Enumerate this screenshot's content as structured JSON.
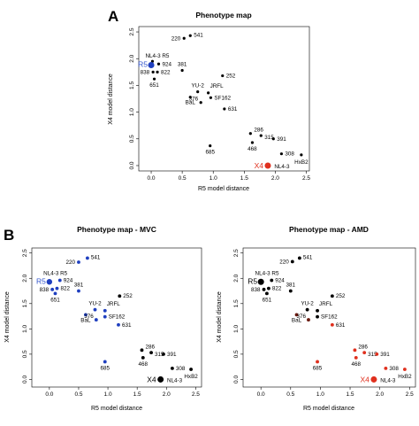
{
  "colors": {
    "blue": "#1f3fbf",
    "red": "#e0301e",
    "black": "#000000",
    "darkred": "#6a1a10",
    "label_blue": "#3355cc"
  },
  "panel_letters": [
    "A",
    "B"
  ],
  "chart_data": [
    {
      "id": "A",
      "type": "scatter",
      "title": "Phenotype map",
      "xlabel": "R5 model distance",
      "ylabel": "X4 model distance",
      "xlim": [
        -0.2,
        2.55
      ],
      "ylim": [
        -0.1,
        2.6
      ],
      "xticks": [
        "0.0",
        "0.5",
        "1.0",
        "1.5",
        "2.0",
        "2.5"
      ],
      "yticks": [
        "0.0",
        "0.5",
        "1.0",
        "1.5",
        "2.0",
        "2.5"
      ],
      "points": [
        {
          "label": "541",
          "x": 0.63,
          "y": 2.43,
          "color": "black",
          "size": 1
        },
        {
          "label": "220",
          "x": 0.53,
          "y": 2.38,
          "color": "black",
          "size": 1
        },
        {
          "label": "NL4-3 R5",
          "x": 0.02,
          "y": 1.95,
          "color": "black",
          "size": 1
        },
        {
          "label": "R5",
          "x": 0.0,
          "y": 1.88,
          "color": "blue",
          "size": 2.2
        },
        {
          "label": "924",
          "x": 0.12,
          "y": 1.9,
          "color": "black",
          "size": 1
        },
        {
          "label": "838",
          "x": 0.03,
          "y": 1.75,
          "color": "black",
          "size": 1
        },
        {
          "label": "822",
          "x": 0.1,
          "y": 1.75,
          "color": "black",
          "size": 1
        },
        {
          "label": "651",
          "x": 0.05,
          "y": 1.62,
          "color": "black",
          "size": 1
        },
        {
          "label": "381",
          "x": 0.5,
          "y": 1.78,
          "color": "black",
          "size": 1
        },
        {
          "label": "252",
          "x": 1.15,
          "y": 1.68,
          "color": "black",
          "size": 1
        },
        {
          "label": "YU-2",
          "x": 0.75,
          "y": 1.38,
          "color": "black",
          "size": 1
        },
        {
          "label": "JRFL",
          "x": 0.92,
          "y": 1.36,
          "color": "black",
          "size": 1
        },
        {
          "label": "BaL",
          "x": 0.63,
          "y": 1.28,
          "color": "black",
          "size": 1
        },
        {
          "label": "376",
          "x": 0.8,
          "y": 1.18,
          "color": "black",
          "size": 1
        },
        {
          "label": "SF162",
          "x": 0.96,
          "y": 1.27,
          "color": "black",
          "size": 1
        },
        {
          "label": "631",
          "x": 1.18,
          "y": 1.06,
          "color": "black",
          "size": 1
        },
        {
          "label": "685",
          "x": 0.95,
          "y": 0.37,
          "color": "black",
          "size": 1
        },
        {
          "label": "286",
          "x": 1.6,
          "y": 0.6,
          "color": "black",
          "size": 1
        },
        {
          "label": "315",
          "x": 1.77,
          "y": 0.56,
          "color": "black",
          "size": 1
        },
        {
          "label": "391",
          "x": 1.97,
          "y": 0.5,
          "color": "black",
          "size": 1
        },
        {
          "label": "468",
          "x": 1.63,
          "y": 0.43,
          "color": "black",
          "size": 1
        },
        {
          "label": "308",
          "x": 2.1,
          "y": 0.22,
          "color": "black",
          "size": 1
        },
        {
          "label": "HxB2",
          "x": 2.42,
          "y": 0.2,
          "color": "black",
          "size": 1
        },
        {
          "label": "X4",
          "x": 1.88,
          "y": 0.0,
          "color": "red",
          "size": 2.2
        },
        {
          "label": "NL4-3",
          "x": 1.9,
          "y": 0.0,
          "color": "black",
          "size": 0
        }
      ]
    },
    {
      "id": "B1",
      "type": "scatter",
      "title": "Phenotype map - MVC",
      "xlabel": "R5 model distance",
      "ylabel": "X4 model distance",
      "xlim": [
        -0.3,
        2.6
      ],
      "ylim": [
        -0.15,
        2.6
      ],
      "xticks": [
        "0.0",
        "0.5",
        "1.0",
        "1.5",
        "2.0",
        "2.5"
      ],
      "yticks": [
        "0.0",
        "0.5",
        "1.0",
        "1.5",
        "2.0",
        "2.5"
      ],
      "points": [
        {
          "label": "541",
          "x": 0.65,
          "y": 2.4,
          "color": "blue",
          "size": 1.2
        },
        {
          "label": "220",
          "x": 0.5,
          "y": 2.32,
          "color": "blue",
          "size": 1.2
        },
        {
          "label": "NL4-3 R5",
          "x": 0.02,
          "y": 2.0,
          "color": "black",
          "size": 0
        },
        {
          "label": "R5",
          "x": 0.0,
          "y": 1.93,
          "color": "blue",
          "size": 2.0
        },
        {
          "label": "924",
          "x": 0.18,
          "y": 1.96,
          "color": "blue",
          "size": 1.2
        },
        {
          "label": "838",
          "x": 0.05,
          "y": 1.78,
          "color": "blue",
          "size": 1.2
        },
        {
          "label": "822",
          "x": 0.13,
          "y": 1.8,
          "color": "blue",
          "size": 1.2
        },
        {
          "label": "651",
          "x": 0.1,
          "y": 1.7,
          "color": "blue",
          "size": 1.2
        },
        {
          "label": "381",
          "x": 0.5,
          "y": 1.75,
          "color": "blue",
          "size": 1.2
        },
        {
          "label": "252",
          "x": 1.2,
          "y": 1.65,
          "color": "black",
          "size": 1.2
        },
        {
          "label": "YU-2",
          "x": 0.78,
          "y": 1.38,
          "color": "blue",
          "size": 1.2
        },
        {
          "label": "JRFL",
          "x": 0.95,
          "y": 1.36,
          "color": "blue",
          "size": 1.2
        },
        {
          "label": "BaL",
          "x": 0.62,
          "y": 1.28,
          "color": "blue",
          "size": 1.2
        },
        {
          "label": "376",
          "x": 0.8,
          "y": 1.18,
          "color": "blue",
          "size": 1.2
        },
        {
          "label": "SF162",
          "x": 0.95,
          "y": 1.24,
          "color": "blue",
          "size": 1.2
        },
        {
          "label": "631",
          "x": 1.18,
          "y": 1.08,
          "color": "blue",
          "size": 1.2
        },
        {
          "label": "685",
          "x": 0.95,
          "y": 0.35,
          "color": "blue",
          "size": 1.2
        },
        {
          "label": "286",
          "x": 1.58,
          "y": 0.58,
          "color": "black",
          "size": 1.2
        },
        {
          "label": "315",
          "x": 1.74,
          "y": 0.53,
          "color": "black",
          "size": 1.2
        },
        {
          "label": "391",
          "x": 1.95,
          "y": 0.5,
          "color": "black",
          "size": 1.2
        },
        {
          "label": "468",
          "x": 1.6,
          "y": 0.43,
          "color": "black",
          "size": 1.2
        },
        {
          "label": "308",
          "x": 2.1,
          "y": 0.22,
          "color": "black",
          "size": 1.2
        },
        {
          "label": "HxB2",
          "x": 2.42,
          "y": 0.2,
          "color": "black",
          "size": 1.2
        },
        {
          "label": "X4",
          "x": 1.9,
          "y": 0.0,
          "color": "black",
          "size": 2.2
        },
        {
          "label": "NL4-3",
          "x": 1.92,
          "y": 0.0,
          "color": "black",
          "size": 0
        }
      ]
    },
    {
      "id": "B2",
      "type": "scatter",
      "title": "Phenotype map - AMD",
      "xlabel": "R5 model distance",
      "ylabel": "X4 model distance",
      "xlim": [
        -0.3,
        2.6
      ],
      "ylim": [
        -0.15,
        2.6
      ],
      "xticks": [
        "0.0",
        "0.5",
        "1.0",
        "1.5",
        "2.0",
        "2.5"
      ],
      "yticks": [
        "0.0",
        "0.5",
        "1.0",
        "1.5",
        "2.0",
        "2.5"
      ],
      "points": [
        {
          "label": "541",
          "x": 0.65,
          "y": 2.4,
          "color": "black",
          "size": 1.2
        },
        {
          "label": "220",
          "x": 0.53,
          "y": 2.33,
          "color": "black",
          "size": 1.2
        },
        {
          "label": "NL4-3 R5",
          "x": 0.02,
          "y": 2.0,
          "color": "black",
          "size": 0
        },
        {
          "label": "R5",
          "x": 0.0,
          "y": 1.93,
          "color": "black",
          "size": 2.2
        },
        {
          "label": "924",
          "x": 0.18,
          "y": 1.96,
          "color": "black",
          "size": 1.2
        },
        {
          "label": "838",
          "x": 0.05,
          "y": 1.78,
          "color": "black",
          "size": 1.2
        },
        {
          "label": "822",
          "x": 0.13,
          "y": 1.8,
          "color": "black",
          "size": 1.2
        },
        {
          "label": "651",
          "x": 0.1,
          "y": 1.7,
          "color": "black",
          "size": 1.2
        },
        {
          "label": "381",
          "x": 0.5,
          "y": 1.75,
          "color": "black",
          "size": 1.2
        },
        {
          "label": "252",
          "x": 1.2,
          "y": 1.65,
          "color": "black",
          "size": 1.2
        },
        {
          "label": "YU-2",
          "x": 0.78,
          "y": 1.38,
          "color": "black",
          "size": 1.2
        },
        {
          "label": "JRFL",
          "x": 0.95,
          "y": 1.36,
          "color": "black",
          "size": 1.2
        },
        {
          "label": "BaL",
          "x": 0.6,
          "y": 1.28,
          "color": "darkred",
          "size": 1.2
        },
        {
          "label": "376",
          "x": 0.8,
          "y": 1.18,
          "color": "darkred",
          "size": 1.2
        },
        {
          "label": "SF162",
          "x": 0.95,
          "y": 1.24,
          "color": "black",
          "size": 1.2
        },
        {
          "label": "631",
          "x": 1.2,
          "y": 1.08,
          "color": "red",
          "size": 1.2
        },
        {
          "label": "685",
          "x": 0.95,
          "y": 0.35,
          "color": "red",
          "size": 1.2
        },
        {
          "label": "286",
          "x": 1.58,
          "y": 0.58,
          "color": "red",
          "size": 1.2
        },
        {
          "label": "315",
          "x": 1.74,
          "y": 0.53,
          "color": "red",
          "size": 1.2
        },
        {
          "label": "391",
          "x": 1.95,
          "y": 0.5,
          "color": "red",
          "size": 1.2
        },
        {
          "label": "468",
          "x": 1.6,
          "y": 0.43,
          "color": "red",
          "size": 1.2
        },
        {
          "label": "308",
          "x": 2.1,
          "y": 0.22,
          "color": "red",
          "size": 1.2
        },
        {
          "label": "HxB2",
          "x": 2.42,
          "y": 0.2,
          "color": "red",
          "size": 1.2
        },
        {
          "label": "X4",
          "x": 1.9,
          "y": 0.0,
          "color": "red",
          "size": 2.2
        },
        {
          "label": "NL4-3",
          "x": 1.92,
          "y": 0.0,
          "color": "black",
          "size": 0
        }
      ]
    }
  ]
}
